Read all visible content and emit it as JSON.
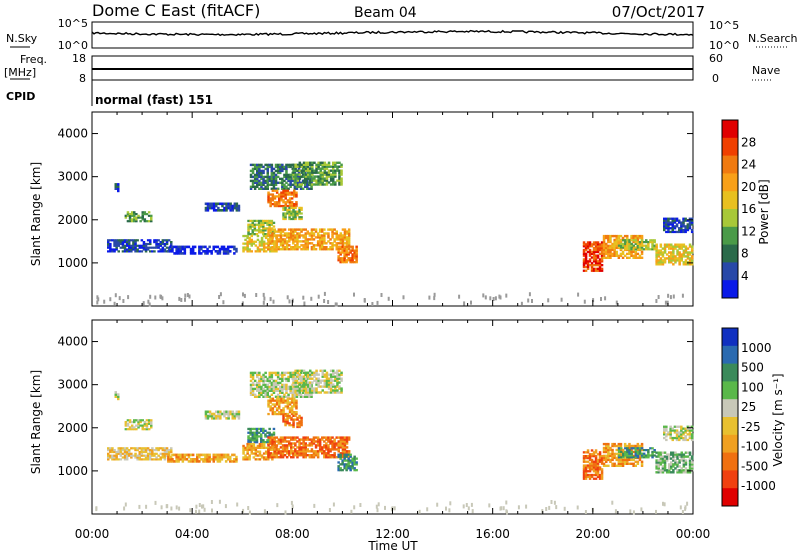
{
  "header": {
    "radar": "Dome C East (fitACF)",
    "beam": "Beam 04",
    "date": "07/Oct/2017"
  },
  "top_panels": {
    "nsky_label": "N.Sky",
    "nsky_ticks": [
      "10^5",
      "10^0"
    ],
    "nsearch_label": "N.Search",
    "nsearch_ticks": [
      "10^5",
      "10^0"
    ],
    "freq_label": "Freq.",
    "freq_unit": "[MHz]",
    "freq_ticks": [
      "18",
      "8"
    ],
    "nave_label": "Nave",
    "nave_ticks": [
      "60",
      "0"
    ],
    "cpid_label": "CPID",
    "cpid_text": "normal (fast) 151"
  },
  "chart_data": [
    {
      "type": "heatmap",
      "name": "power",
      "ylabel": "Slant Range [km]",
      "ylim": [
        0,
        4500
      ],
      "y_ticks": [
        "1000",
        "2000",
        "3000",
        "4000"
      ],
      "xlim_hours": [
        0,
        24
      ],
      "x_ticks": [
        "00:00",
        "04:00",
        "08:00",
        "12:00",
        "16:00",
        "20:00",
        "00:00"
      ],
      "xlabel": "Time UT",
      "colorbar": {
        "label": "Power [dB]",
        "ticks": [
          "28",
          "24",
          "20",
          "16",
          "12",
          "8",
          "4"
        ],
        "colors": [
          "#e00000",
          "#f04000",
          "#f07a10",
          "#f8a018",
          "#e8c020",
          "#a8c838",
          "#4a9a48",
          "#2a6a4a",
          "#2848a8",
          "#0a1ae8"
        ]
      },
      "echo_regions": [
        {
          "t": [
            0.9,
            1.1
          ],
          "r": [
            2650,
            2850
          ],
          "level": 8
        },
        {
          "t": [
            1.3,
            2.4
          ],
          "r": [
            1950,
            2200
          ],
          "level": 6
        },
        {
          "t": [
            0.6,
            3.2
          ],
          "r": [
            1250,
            1550
          ],
          "level": 8
        },
        {
          "t": [
            3.0,
            5.8
          ],
          "r": [
            1200,
            1400
          ],
          "level": 9
        },
        {
          "t": [
            4.5,
            5.9
          ],
          "r": [
            2200,
            2400
          ],
          "level": 8
        },
        {
          "t": [
            6.2,
            7.3
          ],
          "r": [
            1650,
            2000
          ],
          "level": 5
        },
        {
          "t": [
            6.0,
            7.4
          ],
          "r": [
            1250,
            1650
          ],
          "level": 4
        },
        {
          "t": [
            7.0,
            10.3
          ],
          "r": [
            1300,
            1800
          ],
          "level": 3
        },
        {
          "t": [
            9.8,
            10.6
          ],
          "r": [
            1000,
            1400
          ],
          "level": 2
        },
        {
          "t": [
            6.3,
            8.8
          ],
          "r": [
            2700,
            3300
          ],
          "level": 7
        },
        {
          "t": [
            8.0,
            10.0
          ],
          "r": [
            2800,
            3350
          ],
          "level": 6
        },
        {
          "t": [
            7.0,
            8.2
          ],
          "r": [
            2300,
            2700
          ],
          "level": 2
        },
        {
          "t": [
            7.6,
            8.4
          ],
          "r": [
            2000,
            2300
          ],
          "level": 5
        },
        {
          "t": [
            19.6,
            20.4
          ],
          "r": [
            800,
            1500
          ],
          "level": 1
        },
        {
          "t": [
            20.4,
            22.0
          ],
          "r": [
            1100,
            1650
          ],
          "level": 3
        },
        {
          "t": [
            21.0,
            22.5
          ],
          "r": [
            1300,
            1550
          ],
          "level": 5
        },
        {
          "t": [
            22.5,
            24.0
          ],
          "r": [
            950,
            1450
          ],
          "level": 4
        },
        {
          "t": [
            22.8,
            24.0
          ],
          "r": [
            1700,
            2050
          ],
          "level": 8
        }
      ]
    },
    {
      "type": "heatmap",
      "name": "velocity",
      "ylabel": "Slant Range [km]",
      "ylim": [
        0,
        4500
      ],
      "y_ticks": [
        "1000",
        "2000",
        "3000",
        "4000"
      ],
      "xlim_hours": [
        0,
        24
      ],
      "x_ticks": [
        "00:00",
        "04:00",
        "08:00",
        "12:00",
        "16:00",
        "20:00",
        "00:00"
      ],
      "xlabel": "Time UT",
      "colorbar": {
        "label": "Velocity [m s⁻¹]",
        "ticks": [
          "1000",
          "500",
          "100",
          "25",
          "-25",
          "-100",
          "-500",
          "-1000"
        ],
        "colors": [
          "#1030c0",
          "#2a6ab0",
          "#3a8a5a",
          "#5ab84a",
          "#c8c8b8",
          "#e8c030",
          "#f0a020",
          "#f07010",
          "#f04010",
          "#e00000"
        ]
      },
      "echo_regions": [
        {
          "t": [
            0.9,
            1.1
          ],
          "r": [
            2650,
            2850
          ],
          "level": 4
        },
        {
          "t": [
            1.3,
            2.4
          ],
          "r": [
            1950,
            2200
          ],
          "level": 4
        },
        {
          "t": [
            0.6,
            3.2
          ],
          "r": [
            1250,
            1550
          ],
          "level": 5
        },
        {
          "t": [
            3.0,
            5.8
          ],
          "r": [
            1200,
            1400
          ],
          "level": 6
        },
        {
          "t": [
            4.5,
            5.9
          ],
          "r": [
            2200,
            2400
          ],
          "level": 4
        },
        {
          "t": [
            6.2,
            7.3
          ],
          "r": [
            1650,
            2000
          ],
          "level": 2
        },
        {
          "t": [
            6.0,
            7.4
          ],
          "r": [
            1250,
            1650
          ],
          "level": 6
        },
        {
          "t": [
            7.0,
            10.3
          ],
          "r": [
            1300,
            1800
          ],
          "level": 7
        },
        {
          "t": [
            9.8,
            10.6
          ],
          "r": [
            1000,
            1400
          ],
          "level": 2
        },
        {
          "t": [
            6.3,
            8.8
          ],
          "r": [
            2700,
            3300
          ],
          "level": 4
        },
        {
          "t": [
            8.0,
            10.0
          ],
          "r": [
            2800,
            3350
          ],
          "level": 4
        },
        {
          "t": [
            7.0,
            8.2
          ],
          "r": [
            2300,
            2700
          ],
          "level": 6
        },
        {
          "t": [
            7.6,
            8.4
          ],
          "r": [
            2000,
            2300
          ],
          "level": 7
        },
        {
          "t": [
            19.6,
            20.4
          ],
          "r": [
            800,
            1500
          ],
          "level": 7
        },
        {
          "t": [
            20.4,
            22.0
          ],
          "r": [
            1100,
            1650
          ],
          "level": 6
        },
        {
          "t": [
            21.0,
            22.5
          ],
          "r": [
            1300,
            1550
          ],
          "level": 2
        },
        {
          "t": [
            22.5,
            24.0
          ],
          "r": [
            950,
            1450
          ],
          "level": 3
        },
        {
          "t": [
            22.8,
            24.0
          ],
          "r": [
            1700,
            2050
          ],
          "level": 4
        }
      ]
    }
  ]
}
